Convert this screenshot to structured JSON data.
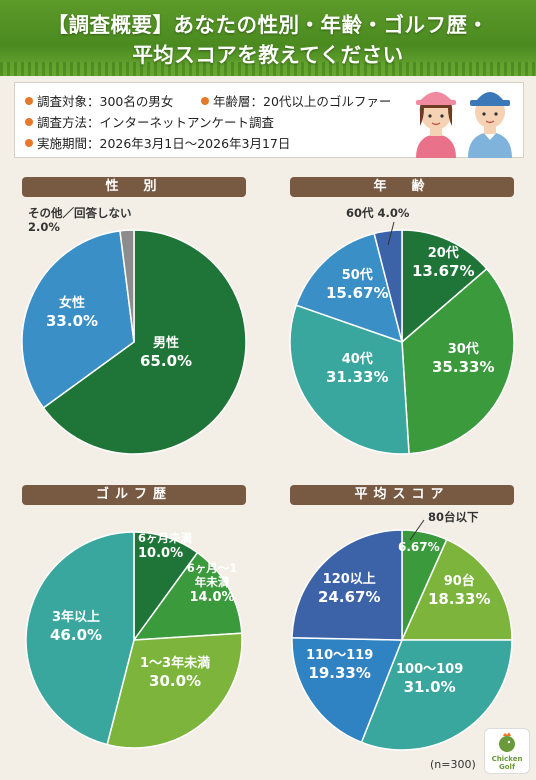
{
  "header": {
    "title_line1": "【調査概要】あなたの性別・年齢・ゴルフ歴・",
    "title_line2": "平均スコアを教えてください"
  },
  "survey": {
    "target": "調査対象：300名の男女",
    "age_range": "年齢層：20代以上のゴルファー",
    "method": "調査方法：インターネットアンケート調査",
    "period": "実施期間：2026年3月1日〜2026年3月17日"
  },
  "sample_note": "(n=300)",
  "logo_text": "Chicken Golf",
  "chart_data": [
    {
      "type": "pie",
      "title": "性　別",
      "categories": [
        "男性",
        "女性",
        "その他／回答しない"
      ],
      "values": [
        65.0,
        33.0,
        2.0
      ],
      "value_labels": [
        "65.0%",
        "33.0%",
        "2.0%"
      ],
      "colors": [
        "#1e7537",
        "#3a8fc7",
        "#8c8c8c"
      ]
    },
    {
      "type": "pie",
      "title": "年　齢",
      "categories": [
        "20代",
        "30代",
        "40代",
        "50代",
        "60代"
      ],
      "values": [
        13.67,
        35.33,
        31.33,
        15.67,
        4.0
      ],
      "value_labels": [
        "13.67%",
        "35.33%",
        "31.33%",
        "15.67%",
        "4.0%"
      ],
      "colors": [
        "#1e7537",
        "#3a9a3c",
        "#3aa79e",
        "#3a8fc7",
        "#3c62a8"
      ]
    },
    {
      "type": "pie",
      "title": "ゴルフ歴",
      "categories": [
        "6ヶ月未満",
        "6ヶ月〜1年未満",
        "1〜3年未満",
        "3年以上"
      ],
      "values": [
        10.0,
        14.0,
        30.0,
        46.0
      ],
      "value_labels": [
        "10.0%",
        "14.0%",
        "30.0%",
        "46.0%"
      ],
      "colors": [
        "#1e7537",
        "#3a9a3c",
        "#7db53c",
        "#3aa79e"
      ]
    },
    {
      "type": "pie",
      "title": "平均スコア",
      "categories": [
        "80台以下",
        "90台",
        "100〜109",
        "110〜119",
        "120以上"
      ],
      "values": [
        6.67,
        18.33,
        31.0,
        19.33,
        24.67
      ],
      "value_labels": [
        "6.67%",
        "18.33%",
        "31.0%",
        "19.33%",
        "24.67%"
      ],
      "colors": [
        "#3a9a3c",
        "#7db53c",
        "#3aa79e",
        "#2f83c2",
        "#3c62a8"
      ]
    }
  ]
}
